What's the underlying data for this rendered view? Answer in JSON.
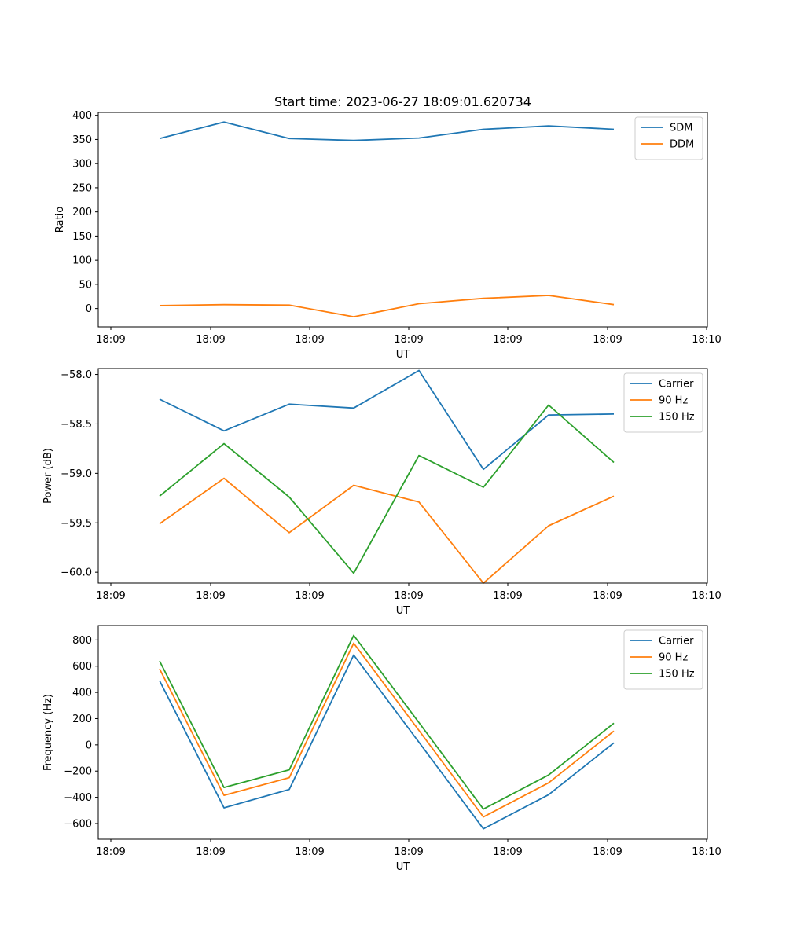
{
  "chart_data": [
    {
      "type": "line",
      "title": "Start time: 2023-06-27 18:09:01.620734",
      "xlabel": "UT",
      "ylabel": "Ratio",
      "ylim": [
        -38,
        406
      ],
      "yticks": [
        0,
        50,
        100,
        150,
        200,
        250,
        300,
        350,
        400
      ],
      "xticks": [
        "18:09",
        "18:09",
        "18:09",
        "18:09",
        "18:09",
        "18:09",
        "18:10"
      ],
      "legend": "top-right",
      "series": [
        {
          "name": "SDM",
          "color": "#1f77b4",
          "values": [
            352,
            386,
            352,
            348,
            353,
            371,
            378,
            371
          ]
        },
        {
          "name": "DDM",
          "color": "#ff7f0e",
          "values": [
            6,
            8,
            7,
            -17,
            10,
            21,
            27,
            8
          ]
        }
      ]
    },
    {
      "type": "line",
      "title": "",
      "xlabel": "UT",
      "ylabel": "Power (dB)",
      "ylim": [
        -60.11,
        -57.94
      ],
      "yticks": [
        -60.0,
        -59.5,
        -59.0,
        -58.5,
        -58.0
      ],
      "yticklabels": [
        "−60.0",
        "−59.5",
        "−59.0",
        "−58.5",
        "−58.0"
      ],
      "xticks": [
        "18:09",
        "18:09",
        "18:09",
        "18:09",
        "18:09",
        "18:09",
        "18:10"
      ],
      "legend": "top-right",
      "series": [
        {
          "name": "Carrier",
          "color": "#1f77b4",
          "values": [
            -58.25,
            -58.57,
            -58.3,
            -58.34,
            -57.96,
            -58.96,
            -58.41,
            -58.4
          ]
        },
        {
          "name": "90 Hz",
          "color": "#ff7f0e",
          "values": [
            -59.51,
            -59.05,
            -59.6,
            -59.12,
            -59.29,
            -60.11,
            -59.53,
            -59.23
          ]
        },
        {
          "name": "150 Hz",
          "color": "#2ca02c",
          "values": [
            -59.23,
            -58.7,
            -59.24,
            -60.01,
            -58.82,
            -59.14,
            -58.31,
            -58.89
          ]
        }
      ]
    },
    {
      "type": "line",
      "title": "",
      "xlabel": "UT",
      "ylabel": "Frequency (Hz)",
      "ylim": [
        -720,
        910
      ],
      "yticks": [
        -600,
        -400,
        -200,
        0,
        200,
        400,
        600,
        800
      ],
      "yticklabels": [
        "−600",
        "−400",
        "−200",
        "0",
        "200",
        "400",
        "600",
        "800"
      ],
      "xticks": [
        "18:09",
        "18:09",
        "18:09",
        "18:09",
        "18:09",
        "18:09",
        "18:10"
      ],
      "legend": "top-right",
      "series": [
        {
          "name": "Carrier",
          "color": "#1f77b4",
          "values": [
            490,
            -480,
            -340,
            685,
            20,
            -640,
            -380,
            15
          ]
        },
        {
          "name": "90 Hz",
          "color": "#ff7f0e",
          "values": [
            580,
            -385,
            -250,
            775,
            110,
            -550,
            -290,
            105
          ]
        },
        {
          "name": "150 Hz",
          "color": "#2ca02c",
          "values": [
            640,
            -325,
            -190,
            835,
            170,
            -490,
            -230,
            165
          ]
        }
      ]
    }
  ]
}
